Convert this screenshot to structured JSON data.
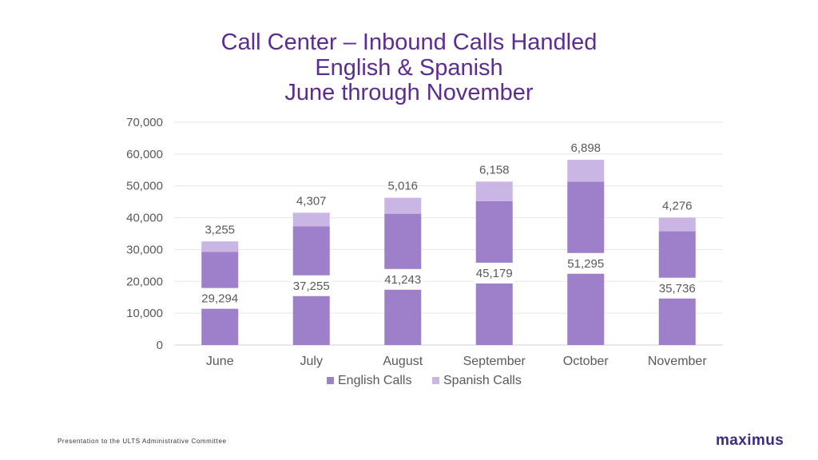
{
  "chart_data": {
    "type": "bar",
    "stacked": true,
    "title": [
      "Call Center – Inbound Calls Handled",
      "English & Spanish",
      "June through November"
    ],
    "categories": [
      "June",
      "July",
      "August",
      "September",
      "October",
      "November"
    ],
    "series": [
      {
        "name": "English Calls",
        "color": "#9e7fc9",
        "values": [
          29294,
          37255,
          41243,
          45179,
          51295,
          35736
        ],
        "labels": [
          "29,294",
          "37,255",
          "41,243",
          "45,179",
          "51,295",
          "35,736"
        ]
      },
      {
        "name": "Spanish Calls",
        "color": "#c9b6e4",
        "values": [
          3255,
          4307,
          5016,
          6158,
          6898,
          4276
        ],
        "labels": [
          "3,255",
          "4,307",
          "5,016",
          "6,158",
          "6,898",
          "4,276"
        ]
      }
    ],
    "ylim": [
      0,
      70000
    ],
    "yticks": [
      "0",
      "10,000",
      "20,000",
      "30,000",
      "40,000",
      "50,000",
      "60,000",
      "70,000"
    ],
    "grid": true,
    "legend_position": "bottom"
  },
  "footer": "Presentation to the ULTS Administrative Committee",
  "logo": "maximus"
}
